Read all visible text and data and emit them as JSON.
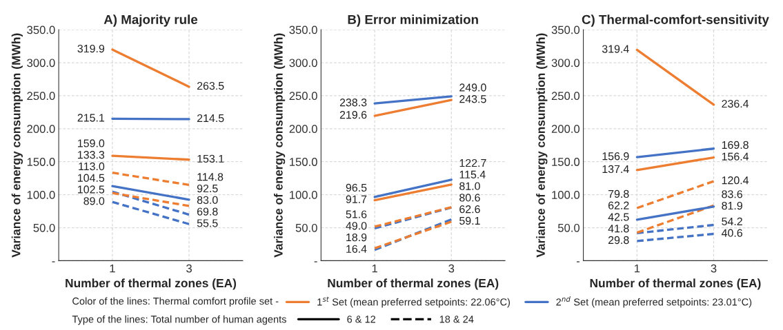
{
  "chart_data": [
    {
      "type": "line",
      "title": "A) Majority rule",
      "xlabel": "Number of thermal zones (EA)",
      "ylabel": "Variance of energy consumption (MWh)",
      "categories": [
        "1",
        "3"
      ],
      "ylim": [
        0,
        350
      ],
      "yticks": [
        {
          "value": 0,
          "label": "-"
        },
        {
          "value": 50,
          "label": "50.0"
        },
        {
          "value": 100,
          "label": "100.0"
        },
        {
          "value": 150,
          "label": "150.0"
        },
        {
          "value": 200,
          "label": "200.0"
        },
        {
          "value": 250,
          "label": "250.0"
        },
        {
          "value": 300,
          "label": "300.0"
        },
        {
          "value": 350,
          "label": "350.0"
        }
      ],
      "grid": true,
      "marker": "none",
      "legend": "bottom",
      "annotations": [
        "Color of the lines: Thermal comfort profile set -",
        "Type of the lines: Total number of human agents",
        "6 & 12",
        "18 & 24"
      ],
      "series": [
        {
          "name": "1$^{st}$ Set (mean preferred setpoints: 22.06°C)",
          "color": "#ed7d31",
          "line_style": "solid",
          "values": [
            319.9,
            263.5
          ],
          "value_labels": [
            "319.9",
            "263.5"
          ]
        },
        {
          "color": "#ed7d31",
          "line_style": "solid",
          "values": [
            159.0,
            153.1
          ],
          "value_labels": [
            "159.0",
            "153.1"
          ]
        },
        {
          "name": "2$^{nd}$ Set (mean preferred setpoints: 23.01°C)",
          "color": "#4472c4",
          "line_style": "solid",
          "values": [
            215.1,
            214.5
          ],
          "value_labels": [
            "215.1",
            "214.5"
          ]
        },
        {
          "color": "#4472c4",
          "line_style": "solid",
          "values": [
            113.0,
            92.5
          ],
          "value_labels": [
            "113.0",
            "92.5"
          ]
        },
        {
          "color": "#ed7d31",
          "line_style": "dashed",
          "values": [
            133.3,
            114.8
          ],
          "value_labels": [
            "133.3",
            "114.8"
          ]
        },
        {
          "color": "#ed7d31",
          "line_style": "dashed",
          "values": [
            102.5,
            83.0
          ],
          "value_labels": [
            "102.5",
            "83.0"
          ]
        },
        {
          "color": "#4472c4",
          "line_style": "dashed",
          "values": [
            104.5,
            69.8
          ],
          "value_labels": [
            "104.5",
            "69.8"
          ]
        },
        {
          "color": "#4472c4",
          "line_style": "dashed",
          "values": [
            89.0,
            55.5
          ],
          "value_labels": [
            "89.0",
            "55.5"
          ]
        }
      ]
    },
    {
      "type": "line",
      "title": "B) Error minimization",
      "xlabel": "Number of thermal zones (EA)",
      "ylabel": "Variance of energy consumption (MWh)",
      "categories": [
        "1",
        "3"
      ],
      "ylim": [
        0,
        350
      ],
      "yticks": [
        {
          "value": 0,
          "label": "-"
        },
        {
          "value": 50,
          "label": "50.0"
        },
        {
          "value": 100,
          "label": "100.0"
        },
        {
          "value": 150,
          "label": "150.0"
        },
        {
          "value": 200,
          "label": "200.0"
        },
        {
          "value": 250,
          "label": "250.0"
        },
        {
          "value": 300,
          "label": "300.0"
        },
        {
          "value": 350,
          "label": "350.0"
        }
      ],
      "grid": true,
      "marker": "none",
      "series": [
        {
          "color": "#4472c4",
          "line_style": "solid",
          "values": [
            238.3,
            249.0
          ],
          "value_labels": [
            "238.3",
            "249.0"
          ]
        },
        {
          "color": "#ed7d31",
          "line_style": "solid",
          "values": [
            219.6,
            243.5
          ],
          "value_labels": [
            "219.6",
            "243.5"
          ]
        },
        {
          "color": "#4472c4",
          "line_style": "solid",
          "values": [
            96.5,
            122.7
          ],
          "value_labels": [
            "96.5",
            "122.7"
          ]
        },
        {
          "color": "#ed7d31",
          "line_style": "solid",
          "values": [
            91.7,
            115.4
          ],
          "value_labels": [
            "91.7",
            "115.4"
          ]
        },
        {
          "color": "#ed7d31",
          "line_style": "dashed",
          "values": [
            51.6,
            81.0
          ],
          "value_labels": [
            "51.6",
            "81.0"
          ]
        },
        {
          "color": "#4472c4",
          "line_style": "dashed",
          "values": [
            49.0,
            80.6
          ],
          "value_labels": [
            "49.0",
            "80.6"
          ]
        },
        {
          "color": "#ed7d31",
          "line_style": "dashed",
          "values": [
            18.9,
            59.1
          ],
          "value_labels": [
            "18.9",
            "59.1"
          ]
        },
        {
          "color": "#4472c4",
          "line_style": "dashed",
          "values": [
            16.4,
            62.6
          ],
          "value_labels": [
            "16.4",
            "62.6"
          ]
        }
      ]
    },
    {
      "type": "line",
      "title": "C) Thermal-comfort-sensitivity",
      "xlabel": "Number of thermal zones (EA)",
      "ylabel": "Variance of energy consumption (MWh)",
      "categories": [
        "1",
        "3"
      ],
      "ylim": [
        0,
        350
      ],
      "yticks": [
        {
          "value": 0,
          "label": "-"
        },
        {
          "value": 50,
          "label": "50.0"
        },
        {
          "value": 100,
          "label": "100.0"
        },
        {
          "value": 150,
          "label": "150.0"
        },
        {
          "value": 200,
          "label": "200.0"
        },
        {
          "value": 250,
          "label": "250.0"
        },
        {
          "value": 300,
          "label": "300.0"
        },
        {
          "value": 350,
          "label": "350.0"
        }
      ],
      "grid": true,
      "marker": "none",
      "series": [
        {
          "color": "#ed7d31",
          "line_style": "solid",
          "values": [
            319.4,
            236.4
          ],
          "value_labels": [
            "319.4",
            "236.4"
          ]
        },
        {
          "color": "#4472c4",
          "line_style": "solid",
          "values": [
            156.9,
            169.8
          ],
          "value_labels": [
            "156.9",
            "169.8"
          ]
        },
        {
          "color": "#ed7d31",
          "line_style": "solid",
          "values": [
            137.4,
            156.4
          ],
          "value_labels": [
            "137.4",
            "156.4"
          ]
        },
        {
          "color": "#4472c4",
          "line_style": "solid",
          "values": [
            62.2,
            81.9
          ],
          "value_labels": [
            "62.2",
            "81.9"
          ]
        },
        {
          "color": "#ed7d31",
          "line_style": "dashed",
          "values": [
            79.8,
            120.4
          ],
          "value_labels": [
            "79.8",
            "120.4"
          ]
        },
        {
          "color": "#ed7d31",
          "line_style": "dashed",
          "values": [
            42.5,
            83.6
          ],
          "value_labels": [
            "42.5",
            "83.6"
          ]
        },
        {
          "color": "#4472c4",
          "line_style": "dashed",
          "values": [
            41.8,
            54.2
          ],
          "value_labels": [
            "41.8",
            "54.2"
          ]
        },
        {
          "color": "#4472c4",
          "line_style": "dashed",
          "values": [
            29.8,
            40.6
          ],
          "value_labels": [
            "29.8",
            "40.6"
          ]
        }
      ]
    }
  ]
}
